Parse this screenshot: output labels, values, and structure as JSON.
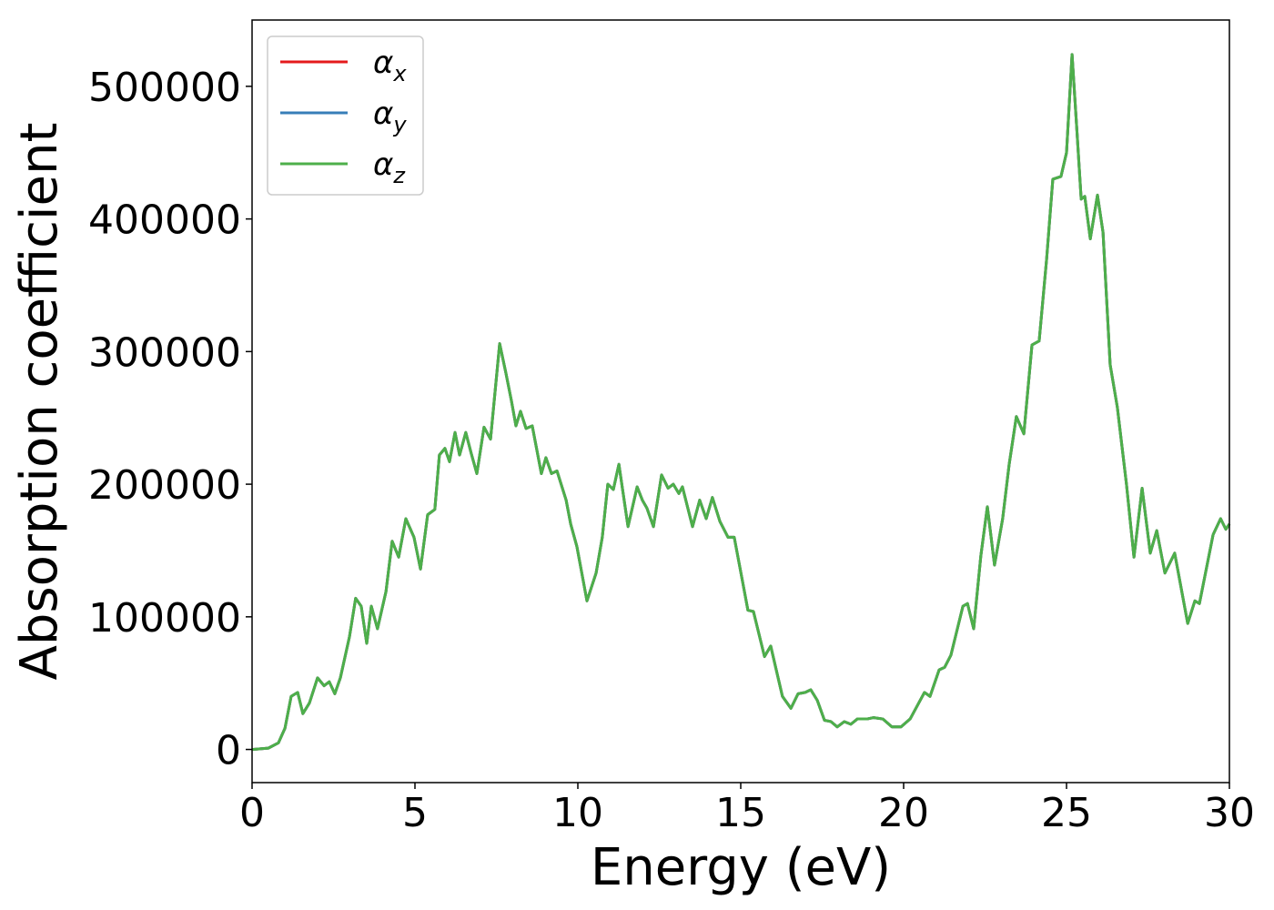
{
  "chart_data": {
    "type": "line",
    "x_label": "Energy (eV)",
    "y_label": "Absorption coefficient",
    "x": [
      0,
      0.5,
      0.81,
      1.01,
      1.2,
      1.4,
      1.56,
      1.76,
      2.01,
      2.21,
      2.37,
      2.54,
      2.71,
      2.99,
      3.18,
      3.35,
      3.52,
      3.66,
      3.85,
      4.11,
      4.3,
      4.5,
      4.72,
      4.97,
      5.17,
      5.39,
      5.61,
      5.75,
      5.92,
      6.06,
      6.23,
      6.37,
      6.56,
      6.73,
      6.9,
      7.12,
      7.32,
      7.6,
      7.79,
      7.96,
      8.1,
      8.24,
      8.41,
      8.6,
      8.88,
      9.02,
      9.19,
      9.36,
      9.64,
      9.78,
      9.97,
      10.28,
      10.56,
      10.75,
      10.92,
      11.09,
      11.26,
      11.54,
      11.82,
      11.98,
      12.12,
      12.32,
      12.57,
      12.77,
      12.93,
      13.1,
      13.21,
      13.52,
      13.74,
      13.94,
      14.13,
      14.36,
      14.61,
      14.8,
      15.03,
      15.22,
      15.39,
      15.73,
      15.92,
      16.09,
      16.28,
      16.54,
      16.76,
      16.98,
      17.15,
      17.35,
      17.57,
      17.77,
      17.96,
      18.18,
      18.38,
      18.58,
      18.88,
      19.08,
      19.36,
      19.64,
      19.92,
      20.2,
      20.42,
      20.64,
      20.81,
      21.09,
      21.26,
      21.45,
      21.62,
      21.82,
      21.96,
      22.15,
      22.37,
      22.57,
      22.79,
      23.04,
      23.24,
      23.46,
      23.69,
      23.94,
      24.16,
      24.39,
      24.58,
      24.83,
      25.0,
      25.17,
      25.31,
      25.45,
      25.56,
      25.73,
      25.95,
      26.12,
      26.34,
      26.56,
      26.84,
      27.07,
      27.32,
      27.57,
      27.77,
      28.02,
      28.32,
      28.72,
      28.94,
      29.08,
      29.5,
      29.73,
      29.89,
      30.0
    ],
    "series": [
      {
        "name": "αx",
        "color": "#e41a1c",
        "values": [
          0,
          1000,
          5000,
          16000,
          40000,
          43000,
          27000,
          35000,
          54000,
          48000,
          51000,
          42000,
          54000,
          85000,
          114000,
          108000,
          80000,
          108000,
          91000,
          119000,
          157000,
          145000,
          174000,
          160000,
          136000,
          177000,
          181000,
          222000,
          227000,
          217000,
          239000,
          222000,
          239000,
          223000,
          208000,
          243000,
          234000,
          306000,
          284000,
          263000,
          244000,
          255000,
          242000,
          244000,
          208000,
          220000,
          208000,
          210000,
          188000,
          170000,
          153000,
          112000,
          133000,
          160000,
          200000,
          196000,
          215000,
          168000,
          198000,
          188000,
          182000,
          168000,
          207000,
          197000,
          200000,
          193000,
          198000,
          168000,
          188000,
          174000,
          190000,
          172000,
          160000,
          160000,
          130000,
          105000,
          104000,
          70000,
          78000,
          60000,
          40000,
          31000,
          42000,
          43000,
          45000,
          37000,
          22000,
          21000,
          17000,
          21000,
          19000,
          23000,
          23000,
          24000,
          23000,
          17000,
          17000,
          23000,
          33000,
          43000,
          40000,
          60000,
          62000,
          71000,
          88000,
          108000,
          110000,
          91000,
          146000,
          183000,
          139000,
          174000,
          215000,
          251000,
          238000,
          305000,
          308000,
          370000,
          430000,
          432000,
          450000,
          524000,
          470000,
          415000,
          417000,
          385000,
          418000,
          390000,
          290000,
          258000,
          200000,
          145000,
          197000,
          148000,
          165000,
          133000,
          148000,
          95000,
          112000,
          110000,
          162000,
          174000,
          166000,
          170000
        ]
      },
      {
        "name": "αy",
        "color": "#377eb8",
        "values": [
          0,
          1000,
          5000,
          16000,
          40000,
          43000,
          27000,
          35000,
          54000,
          48000,
          51000,
          42000,
          54000,
          85000,
          114000,
          108000,
          80000,
          108000,
          91000,
          119000,
          157000,
          145000,
          174000,
          160000,
          136000,
          177000,
          181000,
          222000,
          227000,
          217000,
          239000,
          222000,
          239000,
          223000,
          208000,
          243000,
          234000,
          306000,
          284000,
          263000,
          244000,
          255000,
          242000,
          244000,
          208000,
          220000,
          208000,
          210000,
          188000,
          170000,
          153000,
          112000,
          133000,
          160000,
          200000,
          196000,
          215000,
          168000,
          198000,
          188000,
          182000,
          168000,
          207000,
          197000,
          200000,
          193000,
          198000,
          168000,
          188000,
          174000,
          190000,
          172000,
          160000,
          160000,
          130000,
          105000,
          104000,
          70000,
          78000,
          60000,
          40000,
          31000,
          42000,
          43000,
          45000,
          37000,
          22000,
          21000,
          17000,
          21000,
          19000,
          23000,
          23000,
          24000,
          23000,
          17000,
          17000,
          23000,
          33000,
          43000,
          40000,
          60000,
          62000,
          71000,
          88000,
          108000,
          110000,
          91000,
          146000,
          183000,
          139000,
          174000,
          215000,
          251000,
          238000,
          305000,
          308000,
          370000,
          430000,
          432000,
          450000,
          524000,
          470000,
          415000,
          417000,
          385000,
          418000,
          390000,
          290000,
          258000,
          200000,
          145000,
          197000,
          148000,
          165000,
          133000,
          148000,
          95000,
          112000,
          110000,
          162000,
          174000,
          166000,
          170000
        ]
      },
      {
        "name": "αz",
        "color": "#4daf4a",
        "values": [
          0,
          1000,
          5000,
          16000,
          40000,
          43000,
          27000,
          35000,
          54000,
          48000,
          51000,
          42000,
          54000,
          85000,
          114000,
          108000,
          80000,
          108000,
          91000,
          119000,
          157000,
          145000,
          174000,
          160000,
          136000,
          177000,
          181000,
          222000,
          227000,
          217000,
          239000,
          222000,
          239000,
          223000,
          208000,
          243000,
          234000,
          306000,
          284000,
          263000,
          244000,
          255000,
          242000,
          244000,
          208000,
          220000,
          208000,
          210000,
          188000,
          170000,
          153000,
          112000,
          133000,
          160000,
          200000,
          196000,
          215000,
          168000,
          198000,
          188000,
          182000,
          168000,
          207000,
          197000,
          200000,
          193000,
          198000,
          168000,
          188000,
          174000,
          190000,
          172000,
          160000,
          160000,
          130000,
          105000,
          104000,
          70000,
          78000,
          60000,
          40000,
          31000,
          42000,
          43000,
          45000,
          37000,
          22000,
          21000,
          17000,
          21000,
          19000,
          23000,
          23000,
          24000,
          23000,
          17000,
          17000,
          23000,
          33000,
          43000,
          40000,
          60000,
          62000,
          71000,
          88000,
          108000,
          110000,
          91000,
          146000,
          183000,
          139000,
          174000,
          215000,
          251000,
          238000,
          305000,
          308000,
          370000,
          430000,
          432000,
          450000,
          524000,
          470000,
          415000,
          417000,
          385000,
          418000,
          390000,
          290000,
          258000,
          200000,
          145000,
          197000,
          148000,
          165000,
          133000,
          148000,
          95000,
          112000,
          110000,
          162000,
          174000,
          166000,
          170000
        ]
      }
    ],
    "xlim": [
      0,
      30
    ],
    "xticks": [
      0,
      5,
      10,
      15,
      20,
      25,
      30
    ],
    "ylim": [
      -25000,
      550000
    ],
    "yticks": [
      0,
      100000,
      200000,
      300000,
      400000,
      500000
    ],
    "grid": false,
    "legend": "upper left"
  }
}
